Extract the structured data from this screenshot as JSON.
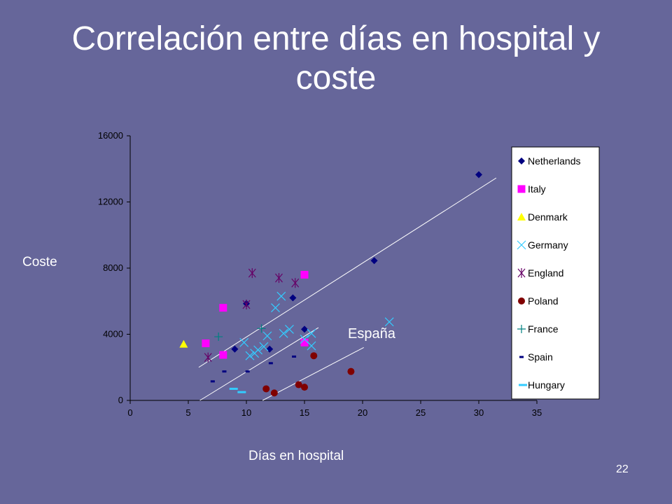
{
  "slide": {
    "title_line1": "Correlación entre días en hospital y",
    "title_line2": "coste",
    "page_number": "22"
  },
  "chart_data": {
    "type": "scatter",
    "title": "Correlación entre días en hospital y coste",
    "xlabel": "Días en hospital",
    "ylabel": "Coste",
    "xlim": [
      0,
      35
    ],
    "ylim": [
      0,
      16000
    ],
    "x_ticks": [
      0,
      5,
      10,
      15,
      20,
      25,
      30,
      35
    ],
    "y_ticks": [
      0,
      4000,
      8000,
      12000,
      16000
    ],
    "grid": false,
    "legend_position": "right",
    "annotation": "España",
    "series": [
      {
        "name": "Netherlands",
        "marker": "diamond",
        "color": "#000080",
        "points": [
          [
            9,
            3100
          ],
          [
            10,
            5850
          ],
          [
            12,
            3100
          ],
          [
            14,
            6200
          ],
          [
            15,
            4300
          ],
          [
            21,
            8450
          ],
          [
            30,
            13650
          ]
        ]
      },
      {
        "name": "Italy",
        "marker": "square",
        "color": "#ff00ff",
        "points": [
          [
            6.5,
            3450
          ],
          [
            8,
            2750
          ],
          [
            8,
            5600
          ],
          [
            15,
            7600
          ],
          [
            15,
            3500
          ]
        ]
      },
      {
        "name": "Denmark",
        "marker": "triangle",
        "color": "#ffff00",
        "points": [
          [
            4.6,
            3400
          ]
        ]
      },
      {
        "name": "Germany",
        "marker": "x",
        "color": "#33ccff",
        "points": [
          [
            9.8,
            3500
          ],
          [
            10.3,
            2700
          ],
          [
            10.7,
            2850
          ],
          [
            11,
            3050
          ],
          [
            11.5,
            3250
          ],
          [
            11.8,
            3900
          ],
          [
            12.5,
            5600
          ],
          [
            13,
            6300
          ],
          [
            13.2,
            4050
          ],
          [
            13.7,
            4300
          ],
          [
            15,
            3700
          ],
          [
            15.6,
            4050
          ],
          [
            15.6,
            3300
          ],
          [
            22.3,
            4750
          ]
        ]
      },
      {
        "name": "England",
        "marker": "asterisk",
        "color": "#660066",
        "points": [
          [
            6.7,
            2600
          ],
          [
            10,
            5800
          ],
          [
            10.5,
            7700
          ],
          [
            12.8,
            7400
          ],
          [
            14.2,
            7100
          ]
        ]
      },
      {
        "name": "Poland",
        "marker": "circle",
        "color": "#800000",
        "points": [
          [
            11.7,
            700
          ],
          [
            12.4,
            450
          ],
          [
            14.5,
            950
          ],
          [
            15,
            800
          ],
          [
            15.8,
            2700
          ],
          [
            19,
            1750
          ]
        ]
      },
      {
        "name": "France",
        "marker": "plus",
        "color": "#008080",
        "points": [
          [
            7.6,
            3850
          ],
          [
            11.3,
            4350
          ]
        ]
      },
      {
        "name": "Spain",
        "marker": "dash",
        "color": "#000080",
        "points": [
          [
            7.1,
            1150
          ],
          [
            8.1,
            1750
          ],
          [
            10.1,
            1750
          ],
          [
            12.1,
            2250
          ],
          [
            14.1,
            2650
          ]
        ]
      },
      {
        "name": "Hungary",
        "marker": "dash-wide",
        "color": "#33ccff",
        "points": [
          [
            8.9,
            700
          ],
          [
            9.6,
            500
          ]
        ]
      }
    ],
    "trend_lines": [
      {
        "from": [
          5.9,
          2000
        ],
        "to": [
          31.5,
          13450
        ]
      },
      {
        "from": [
          6,
          0
        ],
        "to": [
          16.2,
          4400
        ]
      },
      {
        "from": [
          11.4,
          0
        ],
        "to": [
          20.1,
          3200
        ]
      }
    ]
  }
}
